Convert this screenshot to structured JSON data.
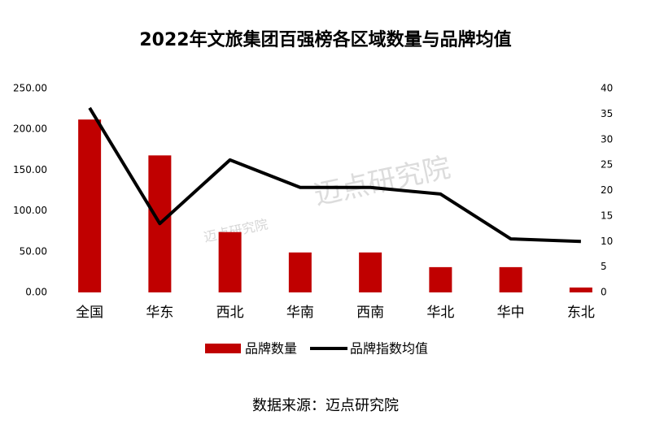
{
  "chart_data": {
    "type": "bar-line",
    "title": "2022年文旅集团百强榜各区域数量与品牌均值",
    "categories": [
      "全国",
      "华东",
      "西北",
      "华南",
      "西南",
      "华北",
      "华中",
      "东北"
    ],
    "series": [
      {
        "name": "品牌数量",
        "type": "bar",
        "color": "#c00000",
        "values": [
          212,
          168,
          74,
          49,
          49,
          31,
          31,
          6
        ]
      },
      {
        "name": "品牌指数均值",
        "type": "line",
        "axis": "y2",
        "color": "#000000",
        "values": [
          36.2,
          13.5,
          26.0,
          20.6,
          20.6,
          19.3,
          10.5,
          10.0
        ]
      }
    ],
    "ylim": [
      0,
      250
    ],
    "yticks": [
      {
        "value": 0,
        "label": "0.00"
      },
      {
        "value": 50,
        "label": "50.00"
      },
      {
        "value": 100,
        "label": "100.00"
      },
      {
        "value": 150,
        "label": "150.00"
      },
      {
        "value": 200,
        "label": "200.00"
      },
      {
        "value": 250,
        "label": "250.00"
      }
    ],
    "y2lim": [
      0,
      40
    ],
    "y2ticks": [
      0,
      5,
      10,
      15,
      20,
      25,
      30,
      35,
      40
    ],
    "legend": "bottom",
    "watermark": "迈点研究院",
    "source": "数据来源：迈点研究院"
  }
}
